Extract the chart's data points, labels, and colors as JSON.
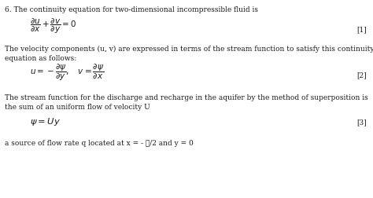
{
  "background_color": "#ffffff",
  "fig_width": 4.74,
  "fig_height": 2.52,
  "dpi": 100,
  "text_color": "#1a1a1a",
  "font_size": 6.5,
  "eq_font_size": 7.5,
  "line1": "6. The continuity equation for two-dimensional incompressible fluid is",
  "eq1": "$\\dfrac{\\partial u}{\\partial x}+\\dfrac{\\partial v}{\\partial y}=0$",
  "eq1_label": "[1]",
  "text2a": "The velocity components (u, v) are expressed in terms of the stream function to satisfy this continuity",
  "text2b": "equation as follows:",
  "eq2": "$u=-\\dfrac{\\partial \\psi}{\\partial y},\\quad v=\\dfrac{\\partial \\psi}{\\partial x}$",
  "eq2_label": "[2]",
  "text3a": "The stream function for the discharge and recharge in the aquifer by the method of superposition is",
  "text3b": "the sum of an uniform flow of velocity U",
  "eq3": "$\\psi=Uy$",
  "eq3_label": "[3]",
  "text4": "a source of flow rate q located at x = - ℓ/2 and y = 0"
}
